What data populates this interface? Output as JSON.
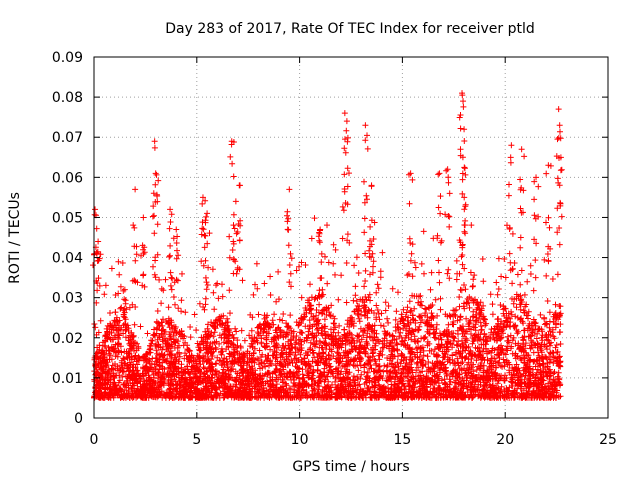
{
  "chart_data": {
    "type": "scatter",
    "title": "Day 283 of 2017, Rate Of TEC Index for receiver ptld",
    "xlabel": "GPS time / hours",
    "ylabel": "ROTI / TECUs",
    "xlim": [
      0,
      25
    ],
    "ylim": [
      0,
      0.09
    ],
    "xticks": [
      "0",
      "5",
      "10",
      "15",
      "20",
      "25"
    ],
    "yticks": [
      "0",
      "0.01",
      "0.02",
      "0.03",
      "0.04",
      "0.05",
      "0.06",
      "0.07",
      "0.08",
      "0.09"
    ],
    "grid": true,
    "marker": "+",
    "series": [
      {
        "name": "ROTI",
        "color": "#ff0000",
        "x_range": [
          0,
          22.7
        ],
        "baseline_band": [
          0.005,
          0.025
        ],
        "peaks": [
          {
            "x": 0.05,
            "y": 0.052
          },
          {
            "x": 0.2,
            "y": 0.044
          },
          {
            "x": 1.5,
            "y": 0.032
          },
          {
            "x": 2.0,
            "y": 0.057
          },
          {
            "x": 2.4,
            "y": 0.05
          },
          {
            "x": 2.95,
            "y": 0.069
          },
          {
            "x": 3.0,
            "y": 0.061
          },
          {
            "x": 3.7,
            "y": 0.052
          },
          {
            "x": 4.0,
            "y": 0.047
          },
          {
            "x": 5.3,
            "y": 0.055
          },
          {
            "x": 5.5,
            "y": 0.051
          },
          {
            "x": 6.7,
            "y": 0.069
          },
          {
            "x": 6.9,
            "y": 0.054
          },
          {
            "x": 7.1,
            "y": 0.058
          },
          {
            "x": 9.5,
            "y": 0.057
          },
          {
            "x": 11.0,
            "y": 0.047
          },
          {
            "x": 12.2,
            "y": 0.076
          },
          {
            "x": 12.3,
            "y": 0.074
          },
          {
            "x": 13.2,
            "y": 0.073
          },
          {
            "x": 13.5,
            "y": 0.058
          },
          {
            "x": 15.4,
            "y": 0.061
          },
          {
            "x": 16.8,
            "y": 0.061
          },
          {
            "x": 17.2,
            "y": 0.062
          },
          {
            "x": 17.9,
            "y": 0.081
          },
          {
            "x": 17.95,
            "y": 0.079
          },
          {
            "x": 18.0,
            "y": 0.072
          },
          {
            "x": 20.3,
            "y": 0.068
          },
          {
            "x": 20.8,
            "y": 0.067
          },
          {
            "x": 21.5,
            "y": 0.06
          },
          {
            "x": 22.1,
            "y": 0.063
          },
          {
            "x": 22.6,
            "y": 0.077
          },
          {
            "x": 22.65,
            "y": 0.073
          }
        ]
      }
    ]
  }
}
